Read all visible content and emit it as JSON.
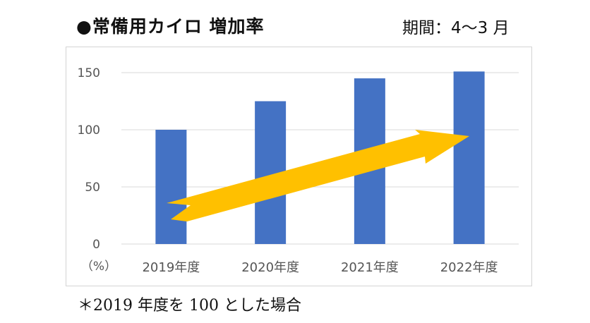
{
  "header": {
    "title": "●常備用カイロ 増加率",
    "period": "期間：4～3 月"
  },
  "footnote": "＊2019 年度を 100 とした場合",
  "colors": {
    "bar": "#4472C4",
    "arrow": "#FFC000",
    "grid": "#d9d9d9"
  },
  "chart_data": {
    "type": "bar",
    "title": "常備用カイロ 増加率",
    "categories": [
      "2019年度",
      "2020年度",
      "2021年度",
      "2022年度"
    ],
    "values": [
      100,
      125,
      145,
      151
    ],
    "ylim": [
      0,
      150
    ],
    "yticks": [
      0,
      50,
      100,
      150
    ],
    "yunit": "（%）",
    "grid": true,
    "annotation": "upward-trend-arrow"
  }
}
